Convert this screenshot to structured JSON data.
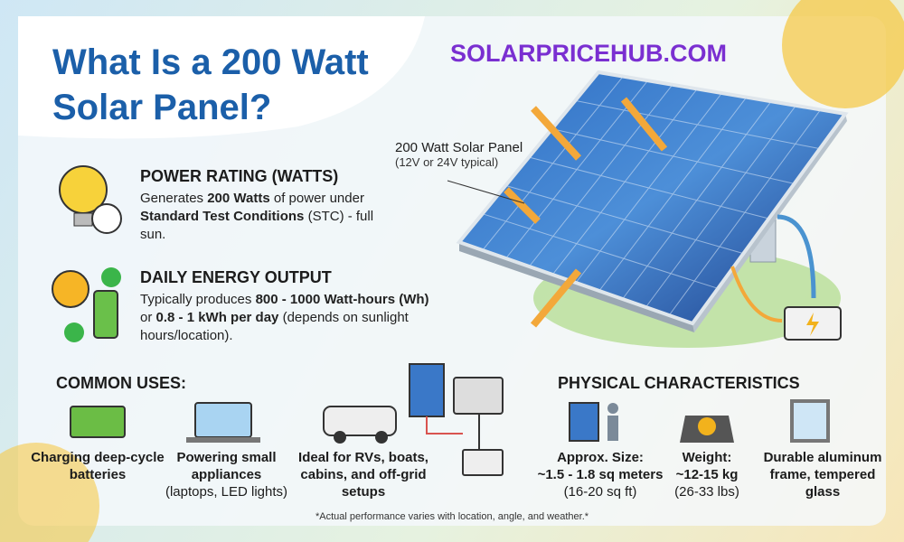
{
  "header": {
    "title_lines": [
      "What Is a 200 Watt",
      "Solar Panel?"
    ],
    "brand": "SOLARPRICEHUB.COM"
  },
  "panel_label": {
    "title": "200 Watt Solar Panel",
    "subtitle": "(12V or 24V typical)"
  },
  "power_rating": {
    "heading": "POWER RATING (WATTS)",
    "body": [
      "Generates ",
      "200 Watts",
      " of power under ",
      "Standard Test Conditions",
      " (STC) - full sun."
    ]
  },
  "daily_output": {
    "heading": "DAILY ENERGY OUTPUT",
    "body": [
      "Typically produces ",
      "800 - 1000 Watt-hours (Wh)",
      " or ",
      "0.8 - 1 kWh per day",
      " (depends on sunlight hours/location)."
    ]
  },
  "common_uses": {
    "heading": "COMMON USES:",
    "items": [
      {
        "label": "Charging deep-cycle batteries"
      },
      {
        "label": "Powering small appliances",
        "note": "(laptops, LED lights)"
      },
      {
        "label": "Ideal for RVs, boats, cabins, and off-grid setups"
      }
    ]
  },
  "physical": {
    "heading": "PHYSICAL CHARACTERISTICS",
    "items": [
      {
        "label": "Approx. Size:",
        "value": "~1.5 - 1.8 sq meters",
        "note": "(16-20 sq ft)"
      },
      {
        "label": "Weight:",
        "value": "~12-15 kg",
        "note": "(26-33 lbs)"
      },
      {
        "label": "Durable aluminum frame, tempered glass"
      }
    ]
  },
  "footer": "*Actual performance varies with location, angle, and weather.*"
}
